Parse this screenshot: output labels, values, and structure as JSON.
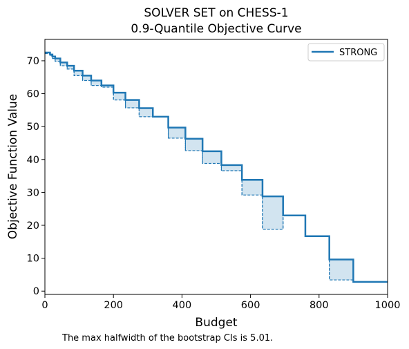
{
  "chart_data": {
    "type": "line",
    "title_line1": "SOLVER SET on CHESS-1",
    "title_line2": "0.9-Quantile Objective Curve",
    "xlabel": "Budget",
    "ylabel": "Objective Function Value",
    "xlim": [
      0,
      1000
    ],
    "ylim": [
      -1,
      76.5
    ],
    "xticks": [
      0,
      200,
      400,
      600,
      800,
      1000
    ],
    "yticks": [
      0,
      10,
      20,
      30,
      40,
      50,
      60,
      70
    ],
    "grid": false,
    "legend_position": "top-right",
    "series": [
      {
        "name": "STRONG",
        "color": "#1f77b4",
        "steps": [
          {
            "x0": 0,
            "x1": 15,
            "y": 72.5,
            "lower": 72.2
          },
          {
            "x0": 15,
            "x1": 22,
            "y": 71.9,
            "lower": 71.5
          },
          {
            "x0": 22,
            "x1": 30,
            "y": 71.3,
            "lower": 70.7
          },
          {
            "x0": 30,
            "x1": 45,
            "y": 70.7,
            "lower": 69.8
          },
          {
            "x0": 45,
            "x1": 65,
            "y": 69.5,
            "lower": 68.5
          },
          {
            "x0": 65,
            "x1": 85,
            "y": 68.5,
            "lower": 67.5
          },
          {
            "x0": 85,
            "x1": 110,
            "y": 67.0,
            "lower": 65.5
          },
          {
            "x0": 110,
            "x1": 135,
            "y": 65.5,
            "lower": 64.0
          },
          {
            "x0": 135,
            "x1": 165,
            "y": 64.0,
            "lower": 62.5
          },
          {
            "x0": 165,
            "x1": 200,
            "y": 62.5,
            "lower": 62.0
          },
          {
            "x0": 200,
            "x1": 235,
            "y": 60.3,
            "lower": 58.1
          },
          {
            "x0": 235,
            "x1": 275,
            "y": 58.1,
            "lower": 55.7
          },
          {
            "x0": 275,
            "x1": 315,
            "y": 55.6,
            "lower": 53.0
          },
          {
            "x0": 315,
            "x1": 360,
            "y": 53.0,
            "lower": 53.0
          },
          {
            "x0": 360,
            "x1": 410,
            "y": 49.7,
            "lower": 46.5
          },
          {
            "x0": 410,
            "x1": 460,
            "y": 46.3,
            "lower": 42.7
          },
          {
            "x0": 460,
            "x1": 515,
            "y": 42.5,
            "lower": 38.8
          },
          {
            "x0": 515,
            "x1": 575,
            "y": 38.3,
            "lower": 36.6
          },
          {
            "x0": 575,
            "x1": 635,
            "y": 33.8,
            "lower": 29.2
          },
          {
            "x0": 635,
            "x1": 695,
            "y": 28.8,
            "lower": 18.8
          },
          {
            "x0": 695,
            "x1": 760,
            "y": 23.0,
            "lower": 23.0
          },
          {
            "x0": 760,
            "x1": 830,
            "y": 16.7,
            "lower": 16.7
          },
          {
            "x0": 830,
            "x1": 900,
            "y": 9.6,
            "lower": 3.4
          },
          {
            "x0": 900,
            "x1": 1000,
            "y": 2.8,
            "lower": 2.8
          }
        ]
      }
    ],
    "note": "The max halfwidth of the bootstrap CIs is 5.01."
  }
}
